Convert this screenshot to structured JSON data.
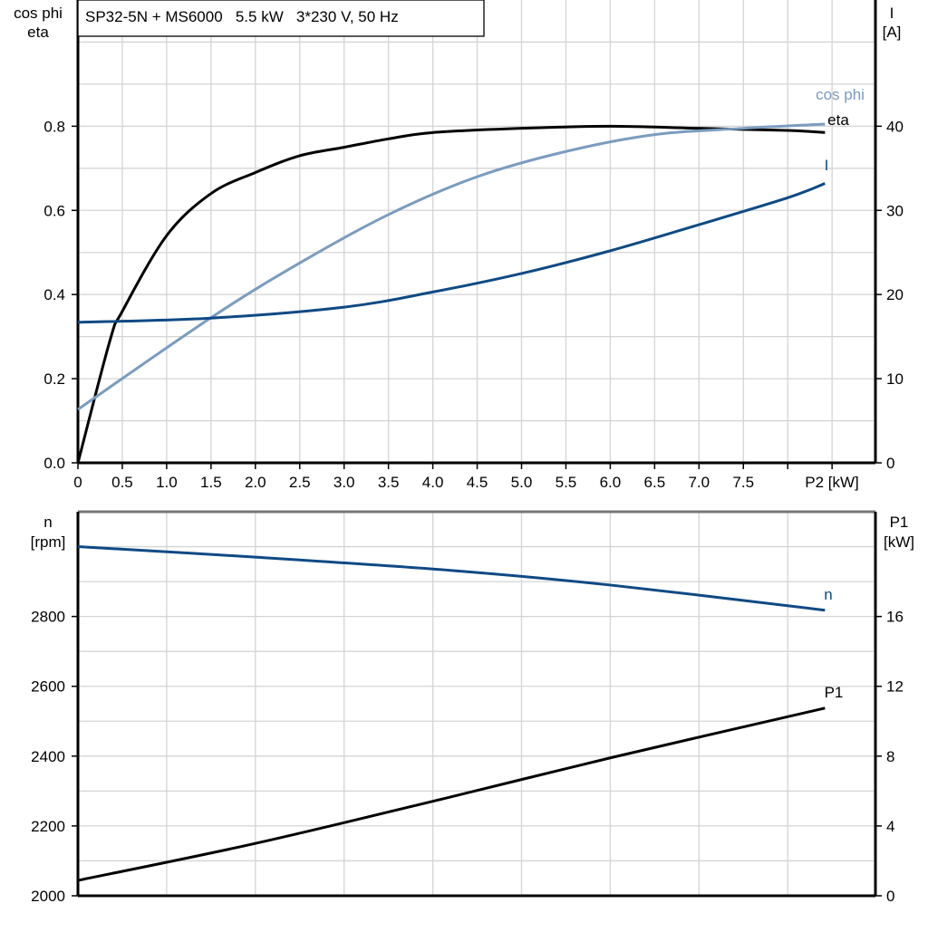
{
  "chart_data": [
    {
      "type": "line",
      "title": "SP32-5N + MS6000   5.5 kW   3*230 V, 50 Hz",
      "xlabel": "P2 [kW]",
      "ylabel_left": [
        "cos phi",
        "eta"
      ],
      "ylabel_right": [
        "I",
        "[A]"
      ],
      "xlim": [
        0,
        9
      ],
      "ylim_left": [
        0,
        1.1
      ],
      "ylim_right": [
        0,
        55
      ],
      "grid": true,
      "x_ticks": [
        "0",
        "0.5",
        "1.0",
        "1.5",
        "2.0",
        "2.5",
        "3.0",
        "3.5",
        "4.0",
        "4.5",
        "5.0",
        "5.5",
        "6.0",
        "6.5",
        "7.0",
        "7.5"
      ],
      "y_ticks_left": [
        "0.0",
        "0.2",
        "0.4",
        "0.6",
        "0.8"
      ],
      "y_ticks_right": [
        "0",
        "10",
        "20",
        "30",
        "40"
      ],
      "series": [
        {
          "name": "eta",
          "axis": "left",
          "color": "#000000",
          "x": [
            0,
            0.36,
            0.5,
            1.0,
            1.5,
            2.0,
            2.5,
            3.0,
            3.5,
            4.0,
            5.0,
            6.0,
            7.0,
            8.0,
            8.42
          ],
          "y": [
            0,
            0.29,
            0.36,
            0.54,
            0.64,
            0.69,
            0.73,
            0.75,
            0.77,
            0.785,
            0.795,
            0.8,
            0.795,
            0.79,
            0.785
          ]
        },
        {
          "name": "cos phi",
          "axis": "left",
          "color": "#7a9cbf",
          "x": [
            0,
            1.5,
            2.5,
            3.5,
            4.5,
            5.5,
            6.5,
            7.5,
            8.42
          ],
          "y": [
            0.127,
            0.345,
            0.475,
            0.59,
            0.68,
            0.74,
            0.78,
            0.795,
            0.805
          ]
        },
        {
          "name": "I",
          "axis": "right",
          "color": "#0e4a84",
          "x": [
            0,
            1.5,
            3,
            4,
            5,
            6,
            7,
            8,
            8.42
          ],
          "y": [
            16.7,
            17.2,
            18.5,
            20.3,
            22.5,
            25.2,
            28.3,
            31.5,
            33.2
          ]
        }
      ]
    },
    {
      "type": "line",
      "xlim": [
        0,
        9
      ],
      "ylabel_left": [
        "n",
        "[rpm]"
      ],
      "ylabel_right": [
        "P1",
        "[kW]"
      ],
      "ylim_left": [
        2000,
        3100
      ],
      "ylim_right": [
        0,
        22
      ],
      "grid": true,
      "y_ticks_left": [
        "2000",
        "2200",
        "2400",
        "2600",
        "2800"
      ],
      "y_ticks_right": [
        "0",
        "4",
        "8",
        "12",
        "16"
      ],
      "series": [
        {
          "name": "n",
          "axis": "left",
          "color": "#0e4a84",
          "x": [
            0,
            2,
            4.2,
            6,
            8.42
          ],
          "y": [
            3000,
            2970,
            2932,
            2890,
            2818
          ]
        },
        {
          "name": "P1",
          "axis": "right",
          "color": "#000000",
          "x": [
            0,
            2,
            4.2,
            6,
            8.42
          ],
          "y": [
            0.88,
            3.0,
            5.66,
            7.9,
            10.75
          ]
        }
      ]
    }
  ]
}
